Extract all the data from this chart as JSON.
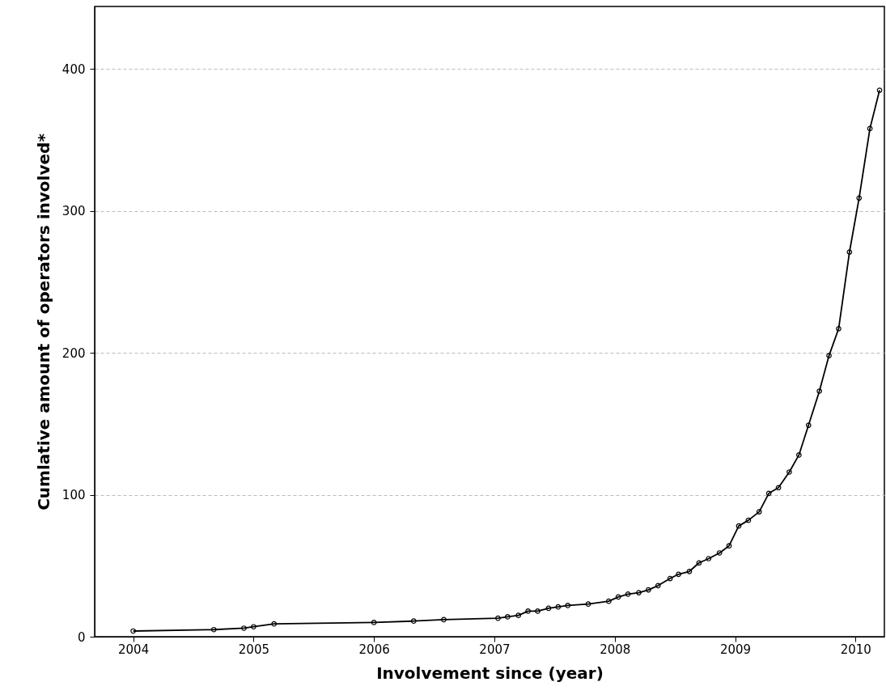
{
  "chart_data": {
    "type": "line",
    "xlabel": "Involvement since (year)",
    "ylabel": "Cumlative amount of operators involved*",
    "x": [
      2004.0,
      2004.67,
      2004.92,
      2005.0,
      2005.17,
      2006.0,
      2006.33,
      2006.58,
      2007.03,
      2007.11,
      2007.2,
      2007.28,
      2007.36,
      2007.45,
      2007.53,
      2007.61,
      2007.78,
      2007.95,
      2008.03,
      2008.11,
      2008.2,
      2008.28,
      2008.36,
      2008.46,
      2008.53,
      2008.62,
      2008.7,
      2008.78,
      2008.87,
      2008.95,
      2009.03,
      2009.11,
      2009.2,
      2009.28,
      2009.36,
      2009.45,
      2009.53,
      2009.61,
      2009.7,
      2009.78,
      2009.86,
      2009.95,
      2010.03,
      2010.12,
      2010.2
    ],
    "series": [
      {
        "color": "#000000",
        "values": [
          4,
          5,
          6,
          7,
          9,
          10,
          11,
          12,
          13,
          14,
          15,
          18,
          18,
          20,
          21,
          22,
          23,
          25,
          28,
          30,
          31,
          33,
          36,
          41,
          44,
          46,
          52,
          55,
          59,
          64,
          78,
          82,
          88,
          101,
          105,
          116,
          128,
          149,
          173,
          198,
          217,
          271,
          309,
          358,
          385
        ]
      }
    ],
    "xlim": [
      2003.68,
      2010.24
    ],
    "xticks": [
      2004,
      2005,
      2006,
      2007,
      2008,
      2009,
      2010
    ],
    "ylim": [
      0,
      444
    ],
    "yticks": [
      0,
      100,
      200,
      300,
      400
    ],
    "grid": "y",
    "marker": "circle",
    "line_style": "solid"
  }
}
